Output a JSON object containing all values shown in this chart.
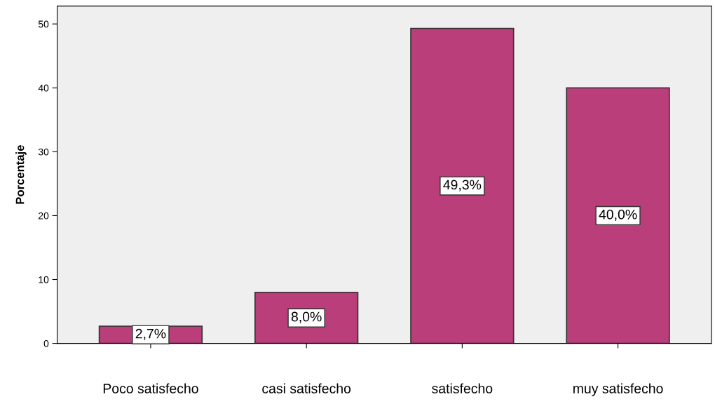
{
  "chart_data": {
    "type": "bar",
    "ylabel": "Porcentaje",
    "categories": [
      "Poco satisfecho",
      "casi satisfecho",
      "satisfecho",
      "muy satisfecho"
    ],
    "values": [
      2.7,
      8.0,
      49.3,
      40.0
    ],
    "value_labels": [
      "2,7%",
      "8,0%",
      "49,3%",
      "40,0%"
    ],
    "color": "#b93e7a",
    "ylim": [
      0,
      52.8
    ],
    "yticks": [
      0,
      10,
      20,
      30,
      40,
      50
    ],
    "grid": false,
    "legend": false
  }
}
